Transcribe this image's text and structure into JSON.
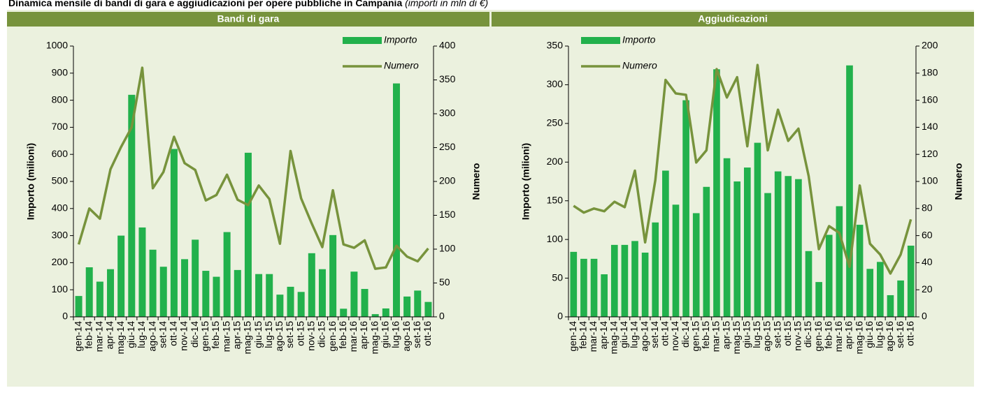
{
  "title": "Dinamica mensile di bandi di gara e aggiudicazioni per opere pubbliche in Campania",
  "title_note": "(importi in mln di €)",
  "chart_data": [
    {
      "type": "bar",
      "title": "Bandi di gara",
      "categories": [
        "gen-14",
        "feb-14",
        "mar-14",
        "apr-14",
        "mag-14",
        "giu-14",
        "lug-14",
        "ago-14",
        "set-14",
        "ott-14",
        "nov-14",
        "dic-14",
        "gen-15",
        "feb-15",
        "mar-15",
        "apr-15",
        "mag-15",
        "giu-15",
        "lug-15",
        "ago-15",
        "set-15",
        "ott-15",
        "nov-15",
        "dic-15",
        "gen-16",
        "feb-16",
        "mar-16",
        "apr-16",
        "mag-16",
        "giu-16",
        "lug-16",
        "ago-16",
        "set-16",
        "ott-16"
      ],
      "series": [
        {
          "name": "Importo",
          "type": "bar",
          "color": "#22b14c",
          "values": [
            77,
            183,
            130,
            176,
            300,
            820,
            330,
            248,
            185,
            620,
            213,
            285,
            170,
            148,
            313,
            173,
            606,
            158,
            158,
            82,
            111,
            92,
            235,
            176,
            302,
            30,
            167,
            103,
            10,
            31,
            862,
            75,
            97,
            55
          ]
        },
        {
          "name": "Numero",
          "type": "line",
          "axis": "y2",
          "color": "#77933c",
          "values": [
            107,
            160,
            145,
            218,
            251,
            280,
            368,
            190,
            214,
            266,
            227,
            217,
            172,
            180,
            210,
            173,
            165,
            194,
            174,
            108,
            245,
            175,
            138,
            103,
            187,
            107,
            102,
            113,
            71,
            73,
            105,
            89,
            82,
            101
          ]
        }
      ],
      "ylabel": "Importo (milioni)",
      "y2label": "Numero",
      "ylim": [
        0,
        1000
      ],
      "yticks": [
        0,
        100,
        200,
        300,
        400,
        500,
        600,
        700,
        800,
        900,
        1000
      ],
      "y2lim": [
        0,
        400
      ],
      "y2ticks": [
        0,
        50,
        100,
        150,
        200,
        250,
        300,
        350,
        400
      ],
      "legend": "upper right"
    },
    {
      "type": "bar",
      "title": "Aggiudicazioni",
      "categories": [
        "gen-14",
        "feb-14",
        "mar-14",
        "apr-14",
        "mag-14",
        "giu-14",
        "lug-14",
        "ago-14",
        "set-14",
        "ott-14",
        "nov-14",
        "dic-14",
        "gen-15",
        "feb-15",
        "mar-15",
        "apr-15",
        "mag-15",
        "giu-15",
        "lug-15",
        "ago-15",
        "set-15",
        "ott-15",
        "nov-15",
        "dic-15",
        "gen-16",
        "feb-16",
        "mar-16",
        "apr-16",
        "mag-16",
        "giu-16",
        "lug-16",
        "ago-16",
        "set-16",
        "ott-16"
      ],
      "series": [
        {
          "name": "Importo",
          "type": "bar",
          "color": "#22b14c",
          "values": [
            84,
            75,
            75,
            55,
            93,
            93,
            98,
            83,
            122,
            189,
            145,
            280,
            134,
            168,
            320,
            205,
            175,
            193,
            225,
            160,
            188,
            182,
            178,
            85,
            45,
            106,
            143,
            325,
            119,
            62,
            71,
            28,
            47,
            92
          ]
        },
        {
          "name": "Numero",
          "type": "line",
          "axis": "y2",
          "color": "#77933c",
          "values": [
            82,
            77,
            80,
            78,
            85,
            81,
            108,
            55,
            101,
            175,
            165,
            164,
            114,
            123,
            183,
            162,
            177,
            126,
            186,
            123,
            153,
            130,
            139,
            104,
            50,
            67,
            62,
            37,
            97,
            54,
            46,
            32,
            46,
            72
          ]
        }
      ],
      "ylabel": "Importo (milioni)",
      "y2label": "Numero",
      "ylim": [
        0,
        350
      ],
      "yticks": [
        0,
        50,
        100,
        150,
        200,
        250,
        300,
        350
      ],
      "y2lim": [
        0,
        200
      ],
      "y2ticks": [
        0,
        20,
        40,
        60,
        80,
        100,
        120,
        140,
        160,
        180,
        200
      ],
      "legend": "upper left"
    }
  ]
}
